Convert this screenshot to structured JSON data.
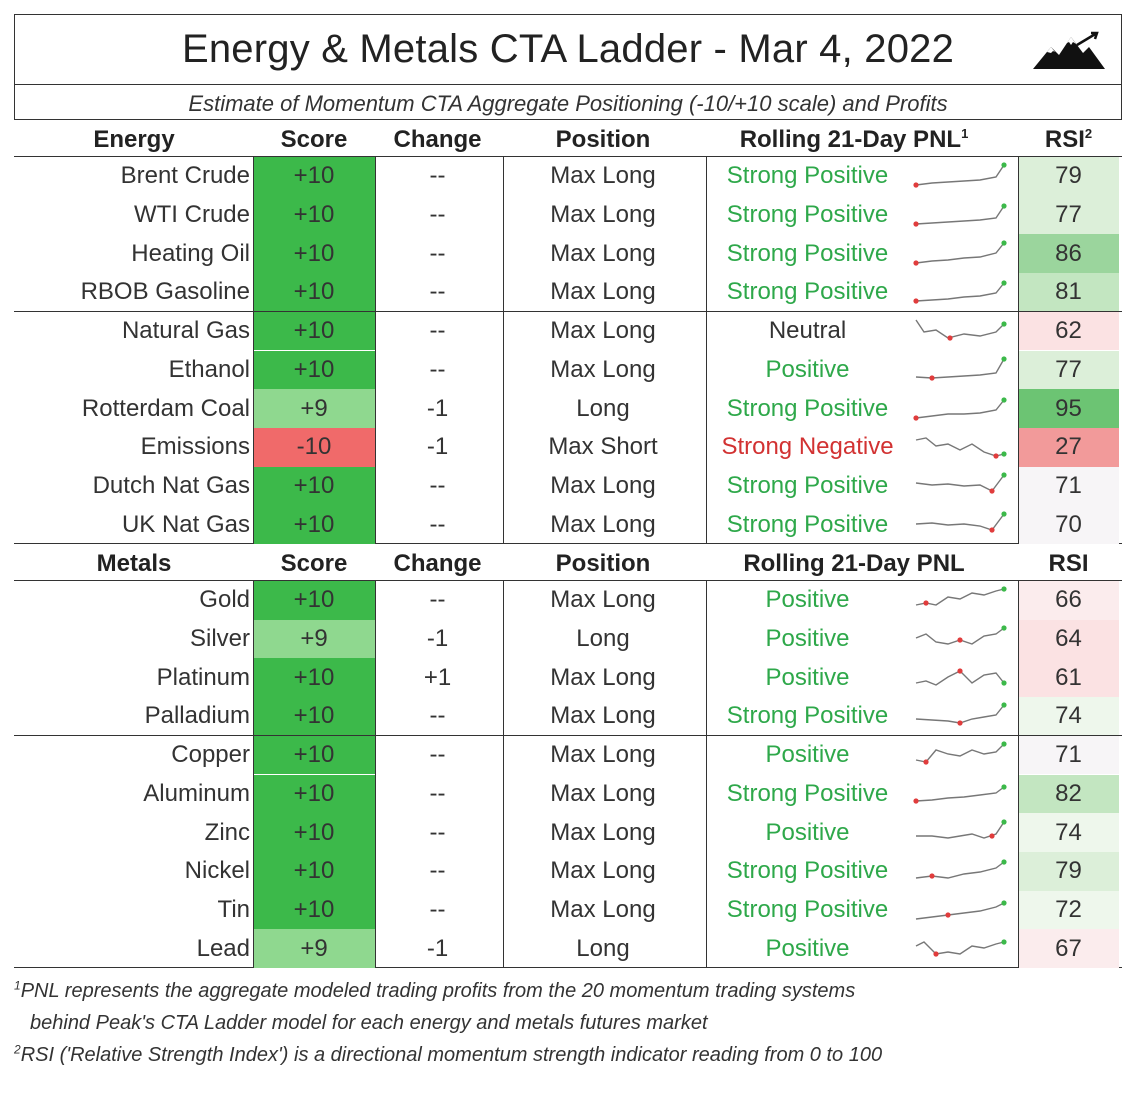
{
  "title": "Energy & Metals CTA Ladder - Mar 4, 2022",
  "subtitle": "Estimate of Momentum CTA Aggregate Positioning (-10/+10 scale) and Profits",
  "colors": {
    "score_max": "#3cb94a",
    "score_mid": "#8fd88f",
    "score_neg": "#f06a6a",
    "pnl_positive": "#2ea84a",
    "pnl_negative": "#d23232",
    "pnl_neutral": "#333333"
  },
  "energy_header": {
    "name": "Energy",
    "score": "Score",
    "change": "Change",
    "position": "Position",
    "pnl": "Rolling 21-Day PNL",
    "pnl_sup": "1",
    "rsi": "RSI",
    "rsi_sup": "2"
  },
  "metals_header": {
    "name": "Metals",
    "score": "Score",
    "change": "Change",
    "position": "Position",
    "pnl": "Rolling 21-Day PNL",
    "rsi": "RSI"
  },
  "energy_rows": [
    {
      "name": "Brent Crude",
      "score": "+10",
      "change": "--",
      "position": "Max Long",
      "pnl": "Strong Positive",
      "rsi": "79"
    },
    {
      "name": "WTI Crude",
      "score": "+10",
      "change": "--",
      "position": "Max Long",
      "pnl": "Strong Positive",
      "rsi": "77"
    },
    {
      "name": "Heating Oil",
      "score": "+10",
      "change": "--",
      "position": "Max Long",
      "pnl": "Strong Positive",
      "rsi": "86"
    },
    {
      "name": "RBOB Gasoline",
      "score": "+10",
      "change": "--",
      "position": "Max Long",
      "pnl": "Strong Positive",
      "rsi": "81"
    },
    {
      "name": "Natural Gas",
      "score": "+10",
      "change": "--",
      "position": "Max Long",
      "pnl": "Neutral",
      "rsi": "62"
    },
    {
      "name": "Ethanol",
      "score": "+10",
      "change": "--",
      "position": "Max Long",
      "pnl": "Positive",
      "rsi": "77"
    },
    {
      "name": "Rotterdam Coal",
      "score": "+9",
      "change": "-1",
      "position": "Long",
      "pnl": "Strong Positive",
      "rsi": "95"
    },
    {
      "name": "Emissions",
      "score": "-10",
      "change": "-1",
      "position": "Max Short",
      "pnl": "Strong Negative",
      "rsi": "27"
    },
    {
      "name": "Dutch Nat Gas",
      "score": "+10",
      "change": "--",
      "position": "Max Long",
      "pnl": "Strong Positive",
      "rsi": "71"
    },
    {
      "name": "UK Nat Gas",
      "score": "+10",
      "change": "--",
      "position": "Max Long",
      "pnl": "Strong Positive",
      "rsi": "70"
    }
  ],
  "metals_rows": [
    {
      "name": "Gold",
      "score": "+10",
      "change": "--",
      "position": "Max Long",
      "pnl": "Positive",
      "rsi": "66"
    },
    {
      "name": "Silver",
      "score": "+9",
      "change": "-1",
      "position": "Long",
      "pnl": "Positive",
      "rsi": "64"
    },
    {
      "name": "Platinum",
      "score": "+10",
      "change": "+1",
      "position": "Max Long",
      "pnl": "Positive",
      "rsi": "61"
    },
    {
      "name": "Palladium",
      "score": "+10",
      "change": "--",
      "position": "Max Long",
      "pnl": "Strong Positive",
      "rsi": "74"
    },
    {
      "name": "Copper",
      "score": "+10",
      "change": "--",
      "position": "Max Long",
      "pnl": "Positive",
      "rsi": "71"
    },
    {
      "name": "Aluminum",
      "score": "+10",
      "change": "--",
      "position": "Max Long",
      "pnl": "Strong Positive",
      "rsi": "82"
    },
    {
      "name": "Zinc",
      "score": "+10",
      "change": "--",
      "position": "Max Long",
      "pnl": "Positive",
      "rsi": "74"
    },
    {
      "name": "Nickel",
      "score": "+10",
      "change": "--",
      "position": "Max Long",
      "pnl": "Strong Positive",
      "rsi": "79"
    },
    {
      "name": "Tin",
      "score": "+10",
      "change": "--",
      "position": "Max Long",
      "pnl": "Strong Positive",
      "rsi": "72"
    },
    {
      "name": "Lead",
      "score": "+9",
      "change": "-1",
      "position": "Long",
      "pnl": "Positive",
      "rsi": "67"
    }
  ],
  "footnotes": {
    "fn1_mark": "1",
    "fn1_line1": "PNL represents the aggregate modeled trading profits from the 20 momentum trading systems",
    "fn1_line2": "behind Peak's CTA Ladder model for each energy and metals futures market",
    "fn2_mark": "2",
    "fn2_text": "RSI ('Relative Strength Index') is a directional momentum strength indicator reading from 0 to 100"
  }
}
